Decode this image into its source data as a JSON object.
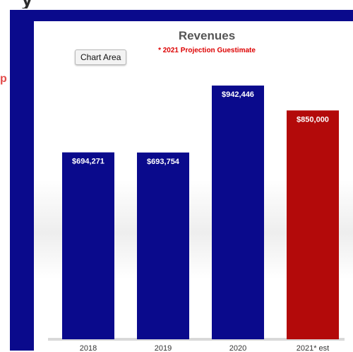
{
  "page": {
    "top_fragment": "y",
    "left_fragment": "p",
    "tooltip": "Chart Area"
  },
  "chart_data": {
    "type": "bar",
    "title": "Revenues",
    "subtitle": "* 2021 Projection Guestimate",
    "categories": [
      "2018",
      "2019",
      "2020",
      "2021* est"
    ],
    "values": [
      694271,
      693754,
      942446,
      850000
    ],
    "labels": [
      "$694,271",
      "$693,754",
      "$942,446",
      "$850,000"
    ],
    "bar_colors": [
      "#0a0a8c",
      "#0a0a8c",
      "#0a0a8c",
      "#b30a0a"
    ],
    "ylim": [
      0,
      1150000
    ],
    "xlabel": "",
    "ylabel": "",
    "grid": false,
    "legend": "none"
  },
  "colors": {
    "frame": "#0a0a8c",
    "title": "#555555",
    "subtitle": "#dd0000",
    "label": "#ffffff",
    "tick": "#333333"
  }
}
